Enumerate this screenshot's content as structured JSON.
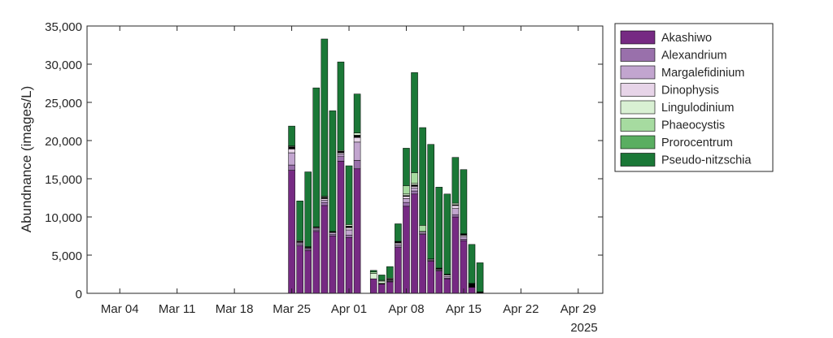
{
  "chart_data": {
    "type": "bar",
    "stacked": true,
    "ylabel": "Abundnance (images/L)",
    "xlabel": "",
    "year_label": "2025",
    "ylim": [
      0,
      35000
    ],
    "yticks": [
      0,
      5000,
      10000,
      15000,
      20000,
      25000,
      30000,
      35000
    ],
    "ytick_labels": [
      "0",
      "5,000",
      "10,000",
      "15,000",
      "20,000",
      "25,000",
      "30,000",
      "35,000"
    ],
    "xlim": [
      "2025-02-28",
      "2025-05-02"
    ],
    "xticks": [
      "2025-03-04",
      "2025-03-11",
      "2025-03-18",
      "2025-03-25",
      "2025-04-01",
      "2025-04-08",
      "2025-04-15",
      "2025-04-22",
      "2025-04-29"
    ],
    "xtick_labels": [
      "Mar 04",
      "Mar 11",
      "Mar 18",
      "Mar 25",
      "Apr 01",
      "Apr 08",
      "Apr 15",
      "Apr 22",
      "Apr 29"
    ],
    "legend_position": "outside-right",
    "grid": false,
    "x": [
      "2025-03-25",
      "2025-03-26",
      "2025-03-27",
      "2025-03-28",
      "2025-03-29",
      "2025-03-30",
      "2025-03-31",
      "2025-04-01",
      "2025-04-02",
      "2025-04-04",
      "2025-04-05",
      "2025-04-06",
      "2025-04-07",
      "2025-04-08",
      "2025-04-09",
      "2025-04-10",
      "2025-04-11",
      "2025-04-12",
      "2025-04-13",
      "2025-04-14",
      "2025-04-15",
      "2025-04-16",
      "2025-04-17"
    ],
    "series": [
      {
        "name": "Akashiwo",
        "color": "#762a83",
        "values": [
          16100,
          6200,
          5600,
          8100,
          11500,
          7500,
          17300,
          7300,
          16300,
          1900,
          1200,
          1500,
          6000,
          11400,
          13000,
          7700,
          4200,
          2900,
          1900,
          10000,
          6900,
          800,
          0
        ]
      },
      {
        "name": "Alexandrium",
        "color": "#9970ab",
        "values": [
          700,
          200,
          200,
          200,
          400,
          200,
          600,
          300,
          1100,
          0,
          0,
          100,
          200,
          500,
          400,
          100,
          100,
          100,
          100,
          300,
          200,
          0,
          0
        ]
      },
      {
        "name": "Margalefidinium",
        "color": "#c2a5cf",
        "values": [
          1600,
          200,
          100,
          200,
          300,
          200,
          300,
          700,
          2400,
          0,
          0,
          100,
          200,
          500,
          400,
          200,
          100,
          100,
          200,
          800,
          300,
          0,
          0
        ]
      },
      {
        "name": "Dinophysis",
        "color": "#e7d4e8",
        "values": [
          500,
          100,
          100,
          100,
          200,
          100,
          200,
          300,
          600,
          0,
          0,
          100,
          200,
          300,
          200,
          100,
          100,
          100,
          200,
          400,
          200,
          0,
          0
        ]
      },
      {
        "name": "Lingulodinium",
        "color": "#d9f0d3",
        "values": [
          100,
          100,
          0,
          0,
          100,
          0,
          100,
          200,
          300,
          700,
          300,
          100,
          0,
          200,
          200,
          0,
          0,
          0,
          0,
          200,
          0,
          0,
          0
        ]
      },
      {
        "name": "Phaeocystis",
        "color": "#a6dba0",
        "values": [
          0,
          0,
          0,
          0,
          0,
          0,
          0,
          0,
          0,
          200,
          100,
          0,
          0,
          1100,
          1400,
          800,
          0,
          0,
          0,
          0,
          0,
          0,
          0
        ]
      },
      {
        "name": "Prorocentrum",
        "color": "#5aae61",
        "values": [
          0,
          0,
          0,
          0,
          0,
          0,
          0,
          0,
          0,
          0,
          0,
          0,
          0,
          0,
          0,
          0,
          0,
          0,
          0,
          0,
          0,
          0,
          0
        ]
      },
      {
        "name": "Pseudo-nitzschia",
        "color": "#1b7837",
        "values": [
          2600,
          5200,
          9800,
          18200,
          20600,
          15800,
          11600,
          7700,
          5100,
          200,
          700,
          1500,
          2300,
          4900,
          13100,
          12800,
          15000,
          10600,
          10500,
          6000,
          8400,
          5100,
          3800
        ]
      }
    ],
    "extra_black_band": [
      300,
      100,
      100,
      100,
      200,
      100,
      200,
      200,
      300,
      0,
      100,
      100,
      200,
      100,
      200,
      0,
      0,
      100,
      100,
      100,
      200,
      500,
      200
    ]
  }
}
